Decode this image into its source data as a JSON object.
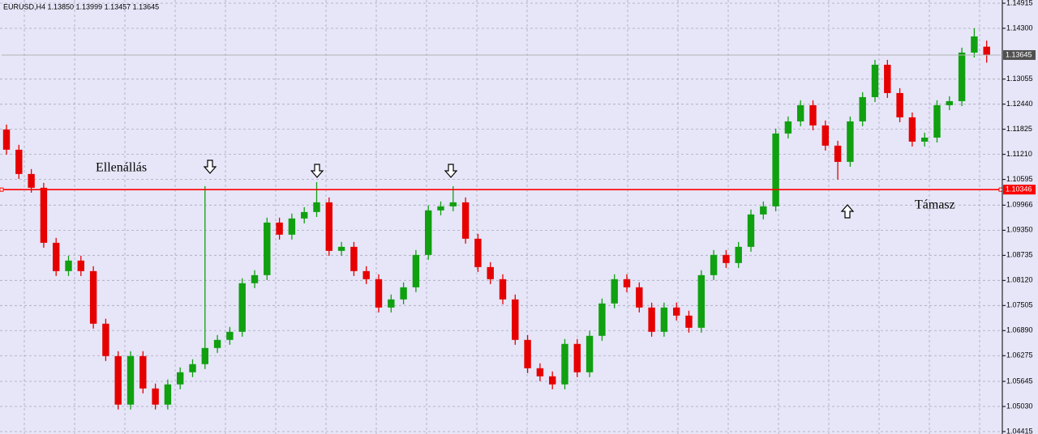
{
  "chart_data": {
    "type": "candlestick",
    "title": "EURUSD,H4  1.13850 1.13999 1.13457 1.13645",
    "colors": {
      "up": "#10a010",
      "down": "#e60000",
      "background": "#e6e6f8",
      "grid": "#a8a8bc"
    },
    "grid": true,
    "ylim": [
      1.04355,
      1.14994
    ],
    "yticks": [
      1.14915,
      {
        "value": 1.143,
        "label": "1.14300"
      },
      1.13055,
      {
        "value": 1.1244,
        "label": "1.12440"
      },
      1.11825,
      {
        "value": 1.1121,
        "label": "1.11210"
      },
      1.10595,
      1.09966,
      {
        "value": 1.0935,
        "label": "1.09350"
      },
      1.08735,
      {
        "value": 1.0812,
        "label": "1.08120"
      },
      1.07505,
      {
        "value": 1.0689,
        "label": "1.06890"
      },
      1.06275,
      1.05645,
      {
        "value": 1.0503,
        "label": "1.05030"
      },
      1.04415
    ],
    "series": {
      "open": [
        1.1182,
        1.11324,
        1.10729,
        1.10391,
        1.09042,
        1.08348,
        1.08606,
        1.08348,
        1.07059,
        1.06265,
        1.05075,
        1.06265,
        1.05471,
        1.05075,
        1.05571,
        1.05868,
        1.06067,
        1.06463,
        1.06662,
        1.0686,
        1.08051,
        1.08249,
        1.09538,
        1.09241,
        1.09638,
        1.09796,
        1.10034,
        1.08844,
        1.08943,
        1.08348,
        1.0815,
        1.07455,
        1.07654,
        1.07951,
        1.08745,
        1.09836,
        1.09935,
        1.10034,
        1.09142,
        1.08447,
        1.0815,
        1.07654,
        1.06662,
        1.05967,
        1.05769,
        1.05571,
        1.06563,
        1.05868,
        1.06761,
        1.07555,
        1.0815,
        1.07951,
        1.07455,
        1.0686,
        1.07455,
        1.07257,
        1.06959,
        1.08249,
        1.08745,
        1.08546,
        1.08943,
        1.09737,
        1.09935,
        1.11721,
        1.12018,
        1.12415,
        1.11919,
        1.11423,
        1.11026,
        1.12018,
        1.12613,
        1.13407,
        1.12713,
        1.12117,
        1.11522,
        1.11621,
        1.12415,
        1.12514,
        1.13705,
        1.1385
      ],
      "high": [
        1.1194,
        1.11444,
        1.10849,
        1.10511,
        1.09162,
        1.08726,
        1.08726,
        1.08468,
        1.07179,
        1.06385,
        1.06385,
        1.06385,
        1.05591,
        1.05691,
        1.05988,
        1.06187,
        1.10431,
        1.06782,
        1.0698,
        1.08171,
        1.08369,
        1.09658,
        1.09658,
        1.09758,
        1.09916,
        1.1053,
        1.10154,
        1.09063,
        1.09063,
        1.08468,
        1.0827,
        1.07774,
        1.08071,
        1.08865,
        1.09956,
        1.10055,
        1.10431,
        1.10154,
        1.09262,
        1.08567,
        1.0827,
        1.07774,
        1.06782,
        1.06087,
        1.05889,
        1.06683,
        1.06683,
        1.06881,
        1.07675,
        1.0827,
        1.0827,
        1.08071,
        1.07575,
        1.07575,
        1.07575,
        1.07377,
        1.08369,
        1.08865,
        1.08865,
        1.09063,
        1.09857,
        1.10055,
        1.11841,
        1.12138,
        1.12535,
        1.12535,
        1.12039,
        1.11543,
        1.12138,
        1.12733,
        1.13527,
        1.13527,
        1.12833,
        1.12237,
        1.11741,
        1.12535,
        1.12634,
        1.13825,
        1.143,
        1.13999
      ],
      "low": [
        1.11204,
        1.10609,
        1.10271,
        1.08922,
        1.08228,
        1.08228,
        1.08228,
        1.06939,
        1.06145,
        1.04955,
        1.04955,
        1.05351,
        1.04955,
        1.04955,
        1.05451,
        1.05748,
        1.05947,
        1.06343,
        1.06542,
        1.0674,
        1.07931,
        1.08129,
        1.09121,
        1.09121,
        1.09518,
        1.09676,
        1.08724,
        1.08724,
        1.08228,
        1.0803,
        1.07335,
        1.07335,
        1.07534,
        1.07831,
        1.08625,
        1.09716,
        1.09815,
        1.09022,
        1.08327,
        1.0803,
        1.07534,
        1.06542,
        1.05847,
        1.05649,
        1.05451,
        1.05451,
        1.05748,
        1.05748,
        1.06641,
        1.07435,
        1.07831,
        1.07335,
        1.0674,
        1.0674,
        1.07137,
        1.06839,
        1.06839,
        1.08129,
        1.08426,
        1.08426,
        1.08823,
        1.09617,
        1.09815,
        1.11601,
        1.11898,
        1.11799,
        1.11303,
        1.10595,
        1.10906,
        1.11898,
        1.12493,
        1.12593,
        1.11997,
        1.11402,
        1.11402,
        1.11501,
        1.12295,
        1.12394,
        1.13585,
        1.13457
      ],
      "close": [
        1.11324,
        1.10729,
        1.10391,
        1.09042,
        1.08348,
        1.08606,
        1.08348,
        1.07059,
        1.06265,
        1.05075,
        1.06265,
        1.05471,
        1.05075,
        1.05571,
        1.05868,
        1.06067,
        1.06463,
        1.06662,
        1.0686,
        1.08051,
        1.08249,
        1.09538,
        1.09241,
        1.09638,
        1.09796,
        1.10034,
        1.08844,
        1.08943,
        1.08348,
        1.0815,
        1.07455,
        1.07654,
        1.07951,
        1.08745,
        1.09836,
        1.09935,
        1.10034,
        1.09142,
        1.08447,
        1.0815,
        1.07654,
        1.06662,
        1.05967,
        1.05769,
        1.05571,
        1.06563,
        1.05868,
        1.06761,
        1.07555,
        1.0815,
        1.07951,
        1.07455,
        1.0686,
        1.07455,
        1.07257,
        1.06959,
        1.08249,
        1.08745,
        1.08546,
        1.08943,
        1.09737,
        1.09935,
        1.11721,
        1.12018,
        1.12415,
        1.11919,
        1.11423,
        1.11026,
        1.12018,
        1.12613,
        1.13407,
        1.12713,
        1.12117,
        1.11522,
        1.11621,
        1.12415,
        1.12514,
        1.13705,
        1.14101,
        1.13645
      ]
    },
    "price_lines": [
      {
        "value": 1.13645,
        "color": "#b4b4b4",
        "box": "#505050"
      },
      {
        "value": 1.10346,
        "color": "#ff0000",
        "box": "#ff0000"
      }
    ],
    "annotations": [
      "Ellenállás",
      "Támasz"
    ]
  }
}
